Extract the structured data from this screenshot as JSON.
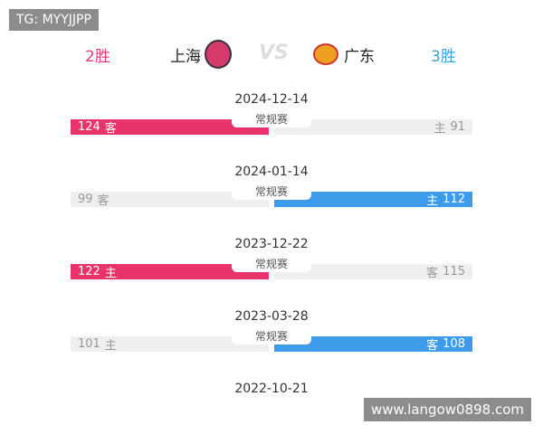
{
  "watermark": "TG: MYYJJPP",
  "footer_url": "www.langow0898.com",
  "header": {
    "left_record": "2胜",
    "left_team": "上海",
    "vs": "VS",
    "right_team": "广东",
    "right_record": "3胜"
  },
  "games": [
    {
      "date": "2024-12-14",
      "type": "常规赛",
      "left": {
        "score": 124,
        "venue": "客"
      },
      "right": {
        "score": 91,
        "venue": "主"
      }
    },
    {
      "date": "2024-01-14",
      "type": "常规赛",
      "left": {
        "score": 99,
        "venue": "客"
      },
      "right": {
        "score": 112,
        "venue": "主"
      }
    },
    {
      "date": "2023-12-22",
      "type": "常规赛",
      "left": {
        "score": 122,
        "venue": "主"
      },
      "right": {
        "score": 115,
        "venue": "客"
      }
    },
    {
      "date": "2023-03-28",
      "type": "常规赛",
      "left": {
        "score": 101,
        "venue": "主"
      },
      "right": {
        "score": 108,
        "venue": "客"
      }
    },
    {
      "date": "2022-10-21"
    }
  ]
}
